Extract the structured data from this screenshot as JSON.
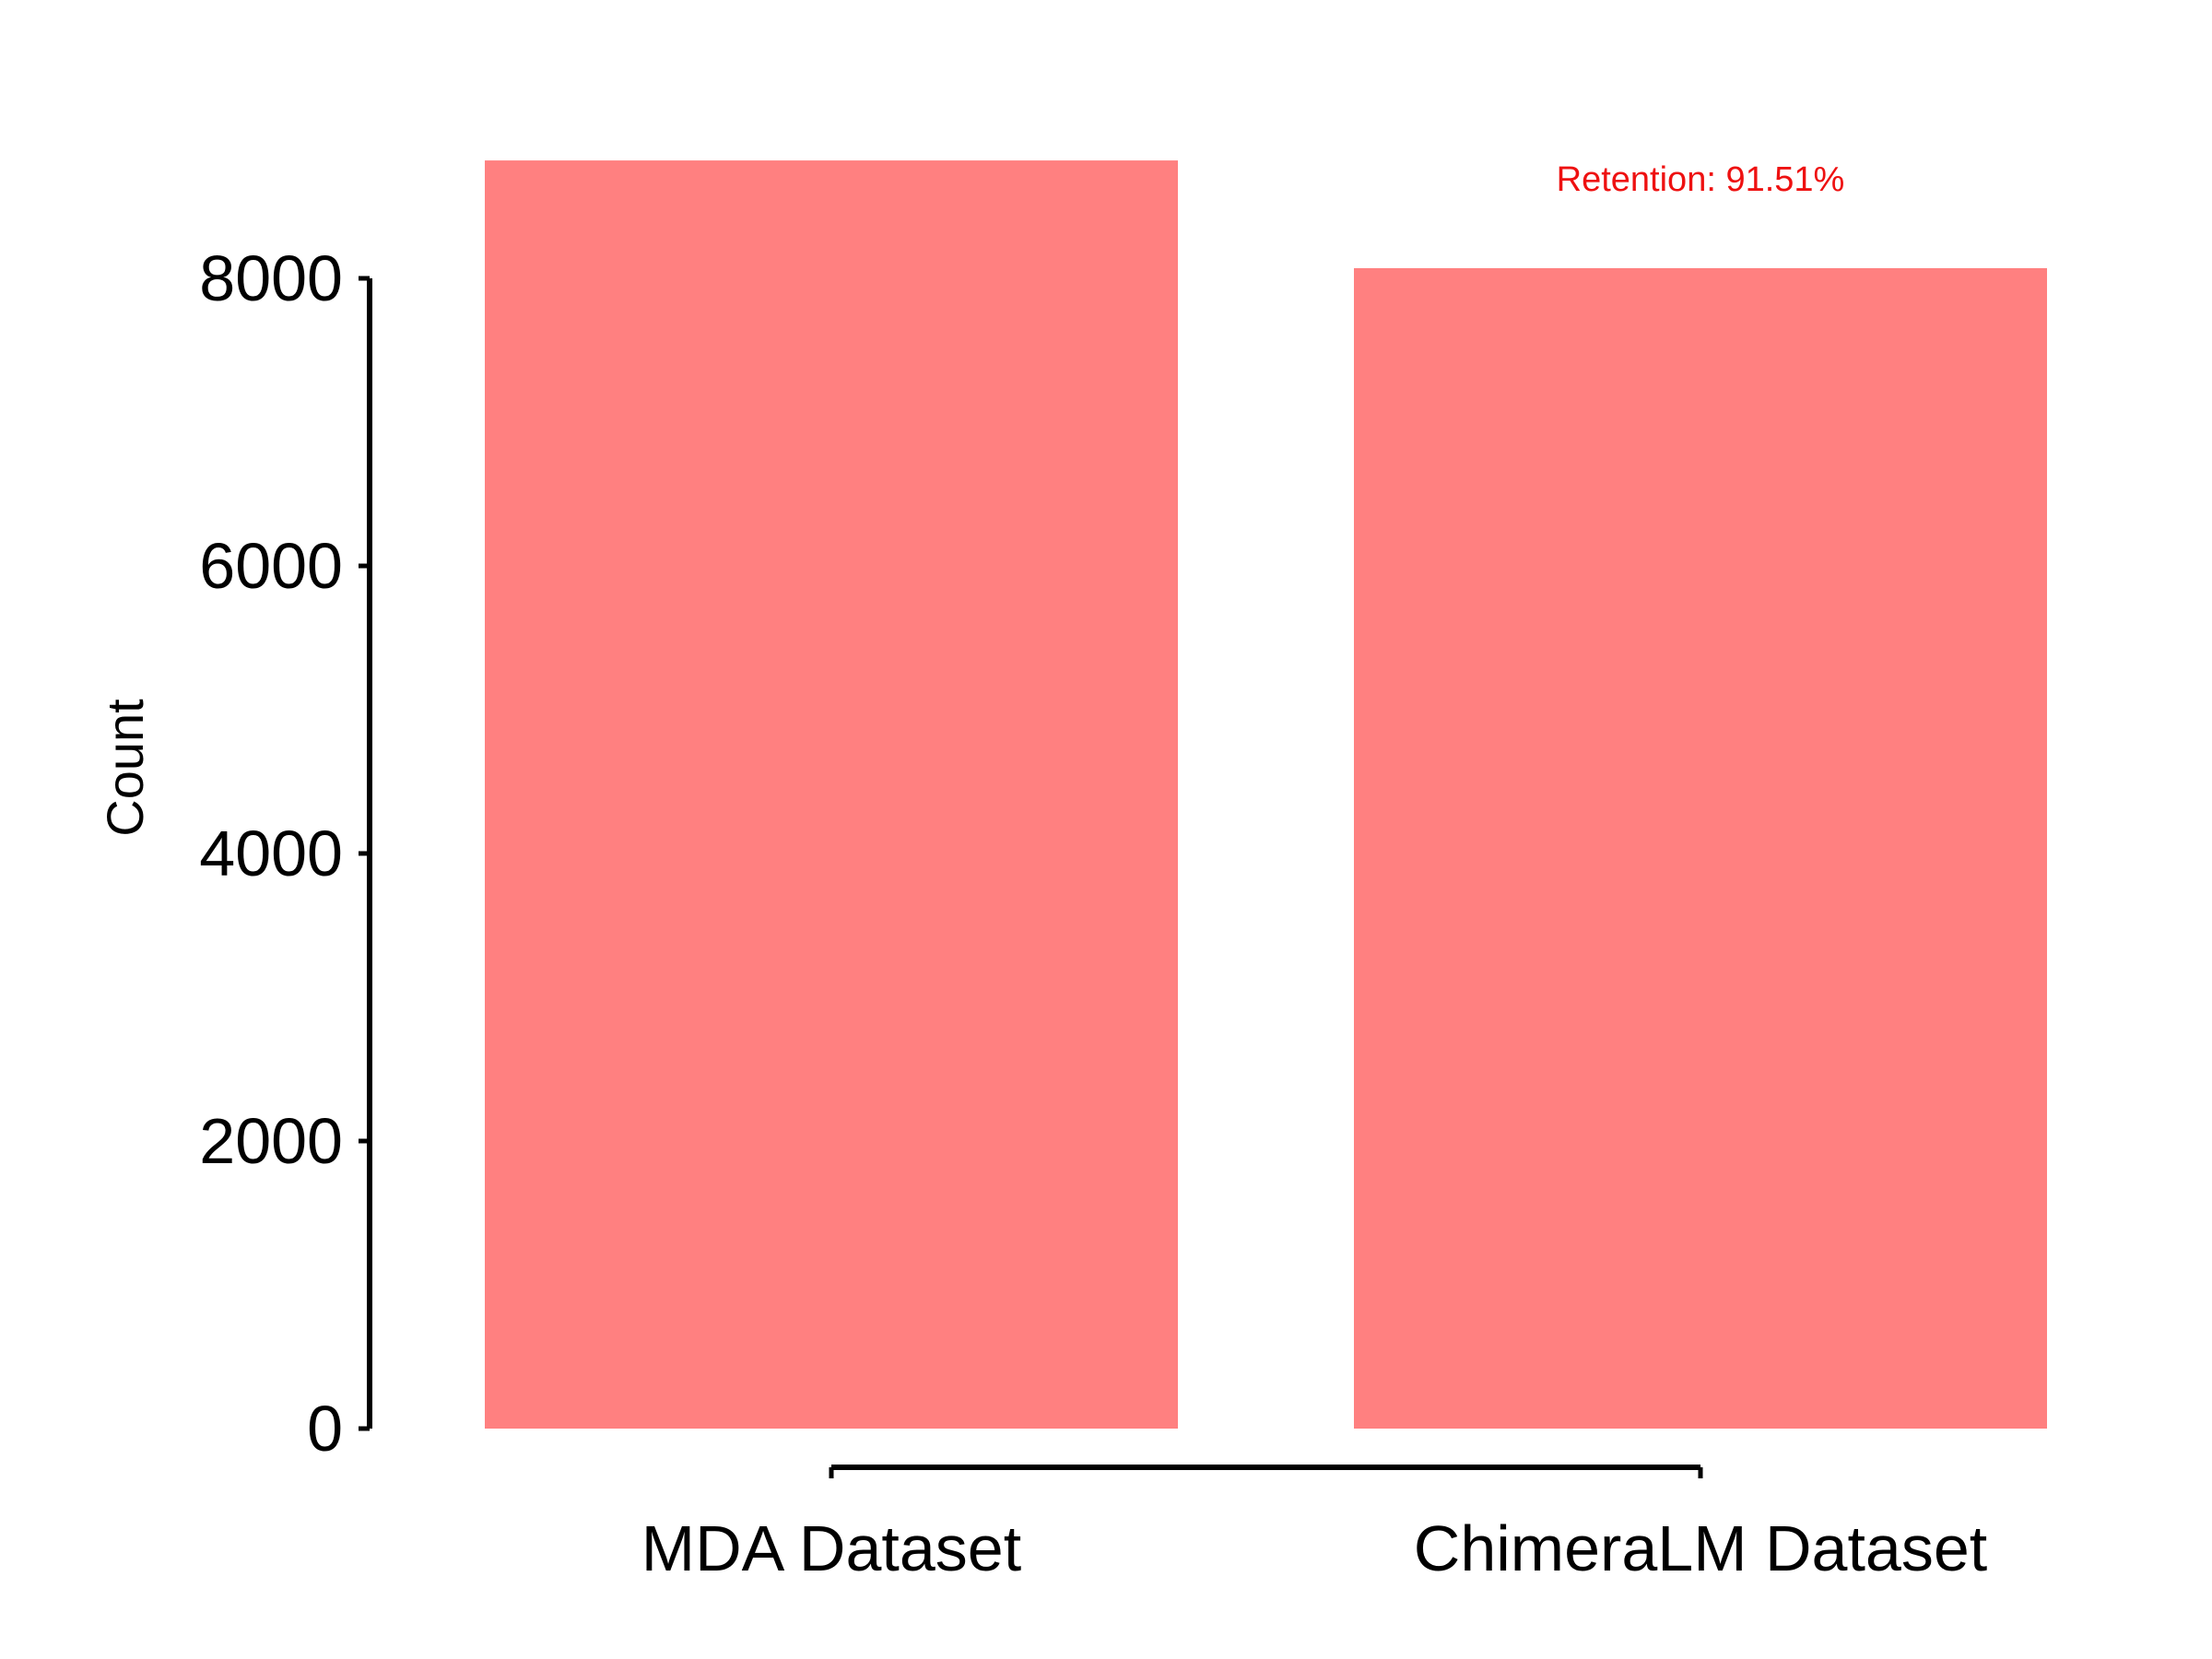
{
  "chart_data": {
    "type": "bar",
    "categories": [
      "MDA Dataset",
      "ChimeraLM Dataset"
    ],
    "values": [
      8820,
      8071
    ],
    "title": "",
    "xlabel": "",
    "ylabel": "Count",
    "ylim": [
      0,
      8000
    ],
    "yticks": [
      0,
      2000,
      4000,
      6000,
      8000
    ],
    "grid": false,
    "annotations": [
      {
        "text": "Retention: 91.51%",
        "category": "ChimeraLM Dataset"
      }
    ],
    "colors": {
      "bar": "#ff8080",
      "annotation": "#ee1111",
      "axis": "#000000"
    }
  }
}
